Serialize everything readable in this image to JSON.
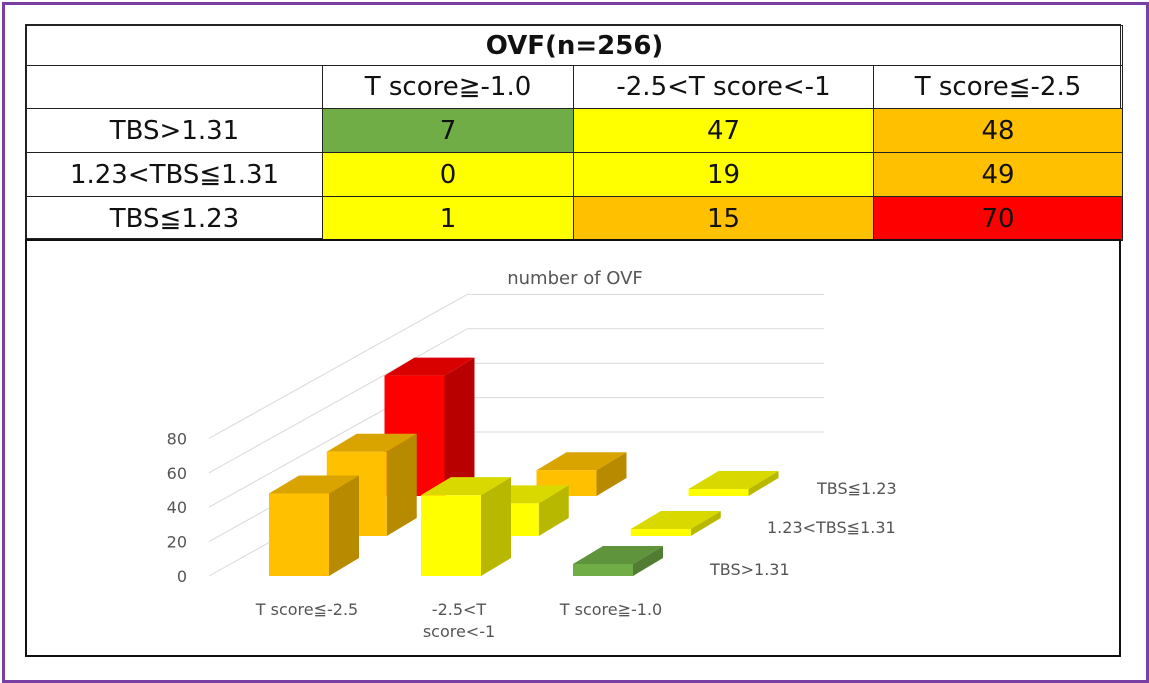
{
  "table": {
    "title": "OVF(n=256)",
    "col_headers": [
      "T score≧-1.0",
      "-2.5<T score<-1",
      "T score≦-2.5"
    ],
    "rows": [
      {
        "label": "TBS>1.31",
        "values": [
          "7",
          "47",
          "48"
        ],
        "colors": [
          "#70ad47",
          "#ffff00",
          "#ffc000"
        ]
      },
      {
        "label": "1.23<TBS≦1.31",
        "values": [
          "0",
          "19",
          "49"
        ],
        "colors": [
          "#ffff00",
          "#ffff00",
          "#ffc000"
        ]
      },
      {
        "label": "TBS≦1.23",
        "values": [
          "1",
          "15",
          "70"
        ],
        "colors": [
          "#ffff00",
          "#ffc000",
          "#ff0000"
        ]
      }
    ]
  },
  "chart_data": {
    "type": "bar",
    "style": "3d-column",
    "title": "number of  OVF",
    "categories": [
      "T score≦-2.5",
      "-2.5<T score<-1",
      "T score≧-1.0"
    ],
    "category_display": [
      [
        "T score≦-2.5"
      ],
      [
        "-2.5<T",
        "score<-1"
      ],
      [
        "T score≧-1.0"
      ]
    ],
    "series": [
      {
        "name": "TBS>1.31",
        "values": [
          48,
          47,
          7
        ]
      },
      {
        "name": "1.23<TBS≦1.31",
        "values": [
          49,
          19,
          0
        ]
      },
      {
        "name": "TBS≦1.23",
        "values": [
          70,
          15,
          1
        ]
      }
    ],
    "bar_colors": [
      [
        "#ffc000",
        "#ffff00",
        "#70ad47"
      ],
      [
        "#ffc000",
        "#ffff00",
        "#ffff00"
      ],
      [
        "#ff0000",
        "#ffc000",
        "#ffff00"
      ]
    ],
    "yticks": [
      0,
      20,
      40,
      60,
      80
    ],
    "ylim": [
      0,
      80
    ],
    "grid": true,
    "legend": "none"
  }
}
